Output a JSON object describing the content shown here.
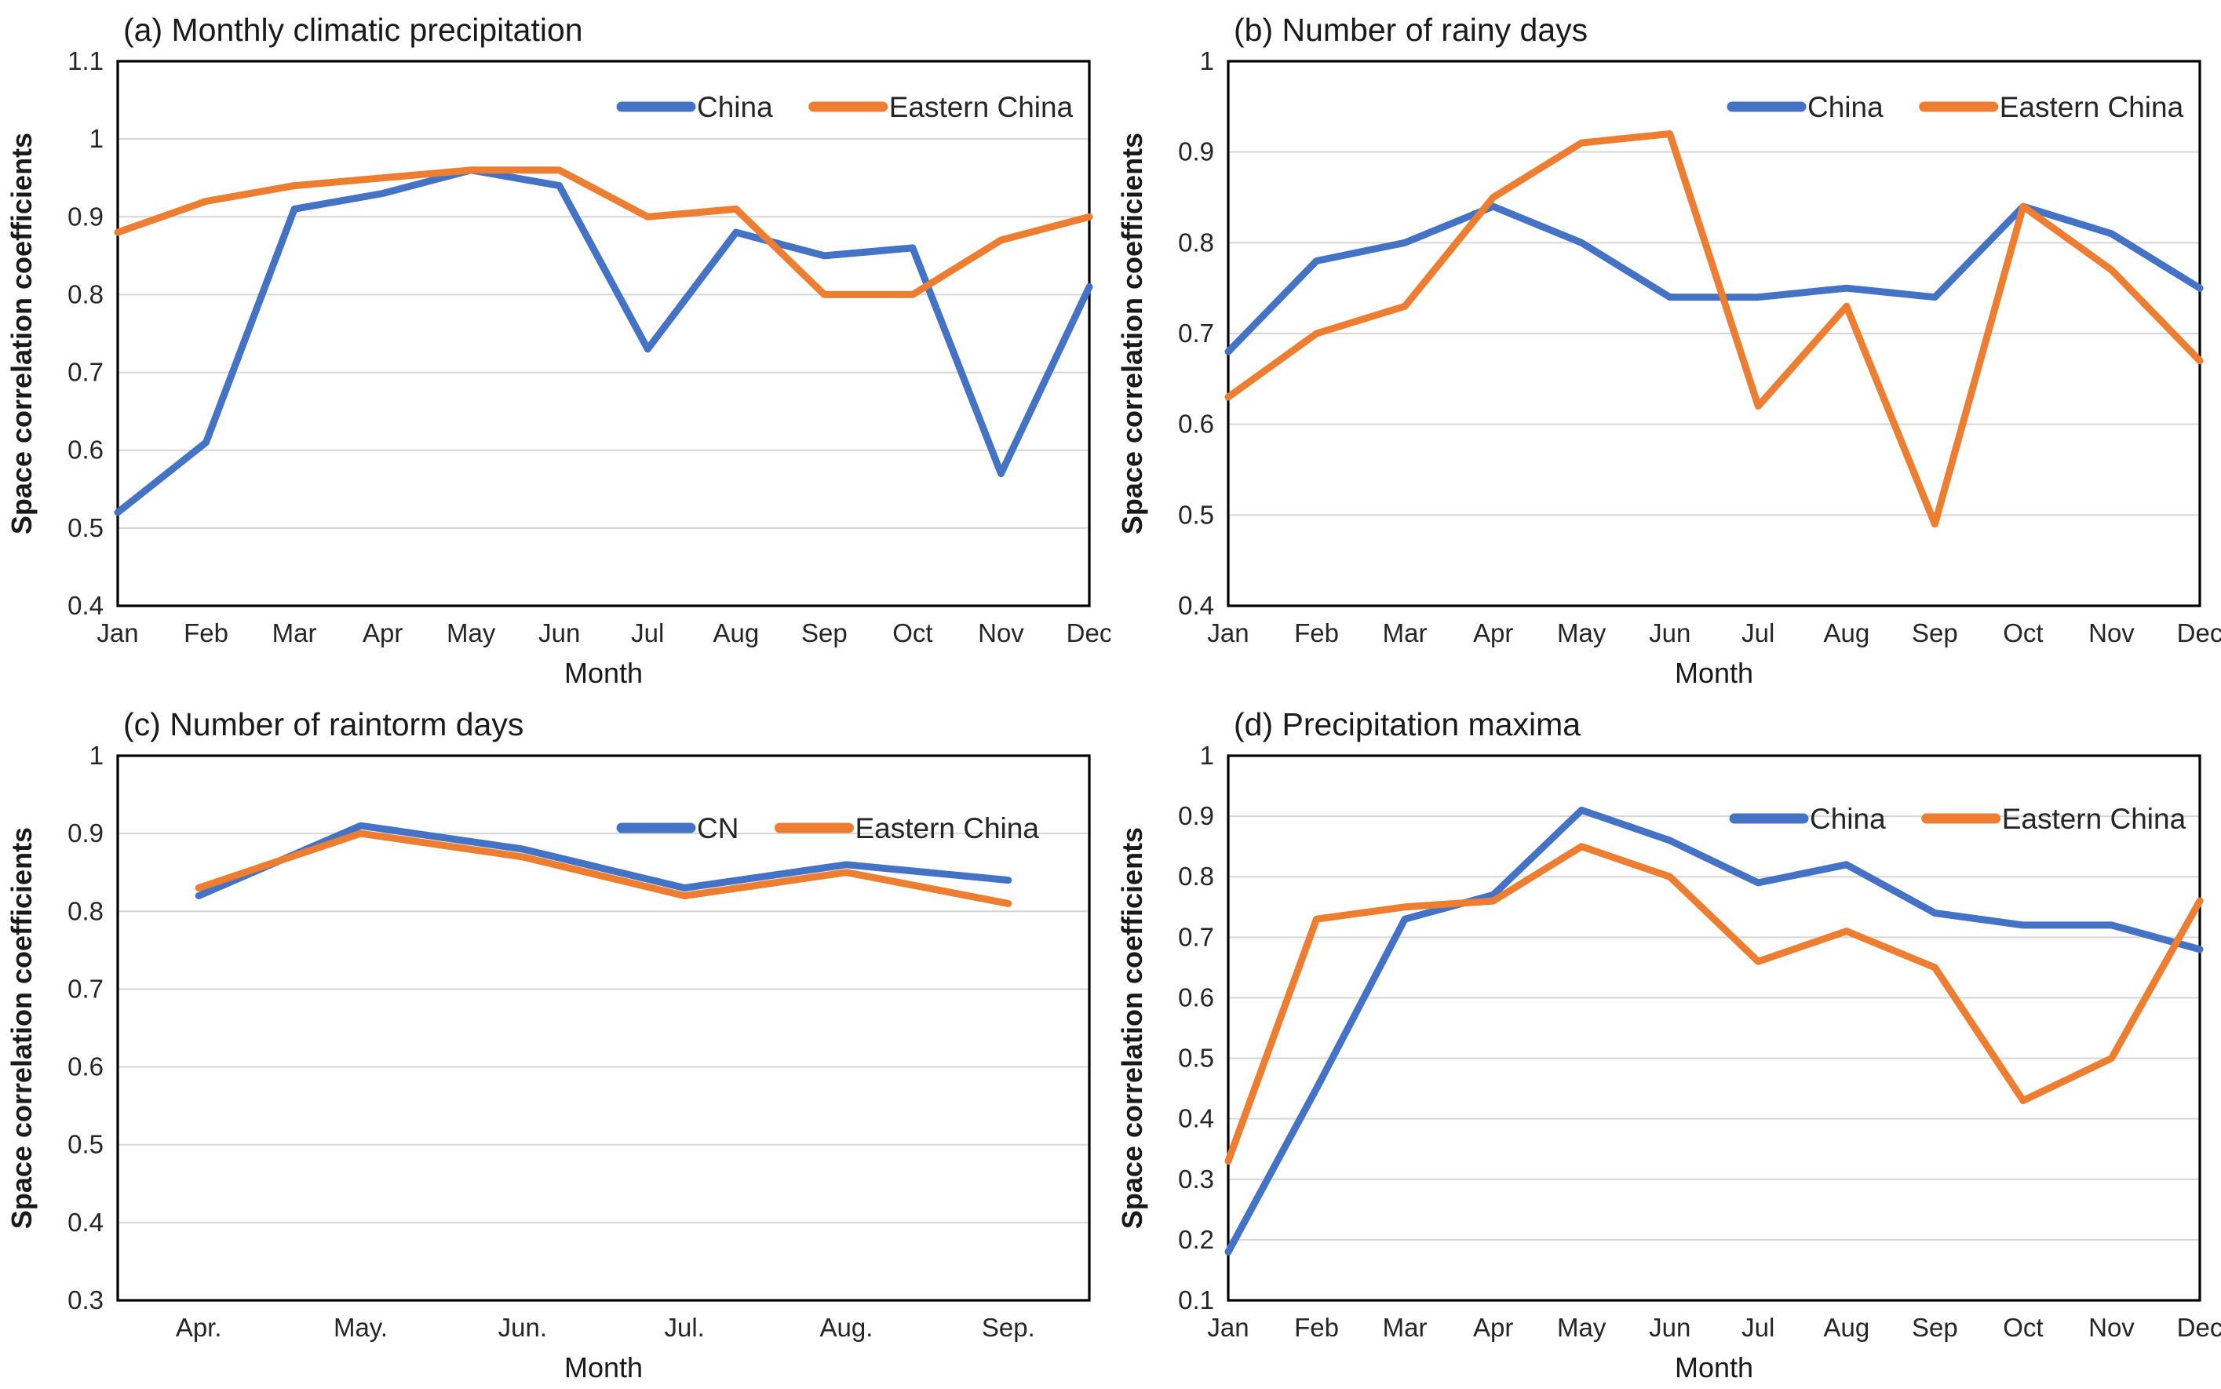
{
  "page": {
    "background": "#ffffff"
  },
  "colors": {
    "series_blue": "#4472C4",
    "series_orange": "#ED7D31",
    "gridline": "#D6D6D6",
    "plot_border": "#000000",
    "tick_text": "#262626",
    "title_text": "#1a1a1a"
  },
  "chart_data": [
    {
      "id": "a",
      "type": "line",
      "title": "(a) Monthly climatic precipitation",
      "xlabel": "Month",
      "ylabel": "Space correlation coefficients",
      "categories": [
        "Jan",
        "Feb",
        "Mar",
        "Apr",
        "May",
        "Jun",
        "Jul",
        "Aug",
        "Sep",
        "Oct",
        "Nov",
        "Dec"
      ],
      "x_placement": "on_ticks",
      "ylim": [
        0.4,
        1.1
      ],
      "yticks": [
        0.4,
        0.5,
        0.6,
        0.7,
        0.8,
        0.9,
        1.0,
        1.1
      ],
      "ytick_labels": [
        "0.4",
        "0.5",
        "0.6",
        "0.7",
        "0.8",
        "0.9",
        "1",
        "1.1"
      ],
      "grid": true,
      "legend_position": "inside-top-right",
      "series": [
        {
          "name": "China",
          "color": "#4472C4",
          "values": [
            0.52,
            0.61,
            0.91,
            0.93,
            0.96,
            0.94,
            0.73,
            0.88,
            0.85,
            0.86,
            0.57,
            0.81
          ]
        },
        {
          "name": "Eastern China",
          "color": "#ED7D31",
          "values": [
            0.88,
            0.92,
            0.94,
            0.95,
            0.96,
            0.96,
            0.9,
            0.91,
            0.8,
            0.8,
            0.87,
            0.9
          ]
        }
      ]
    },
    {
      "id": "b",
      "type": "line",
      "title": "(b) Number of rainy days",
      "xlabel": "Month",
      "ylabel": "Space correlation coefficients",
      "categories": [
        "Jan",
        "Feb",
        "Mar",
        "Apr",
        "May",
        "Jun",
        "Jul",
        "Aug",
        "Sep",
        "Oct",
        "Nov",
        "Dec"
      ],
      "x_placement": "on_ticks",
      "ylim": [
        0.4,
        1.0
      ],
      "yticks": [
        0.4,
        0.5,
        0.6,
        0.7,
        0.8,
        0.9,
        1.0
      ],
      "ytick_labels": [
        "0.4",
        "0.5",
        "0.6",
        "0.7",
        "0.8",
        "0.9",
        "1"
      ],
      "grid": true,
      "legend_position": "inside-top-right",
      "series": [
        {
          "name": "China",
          "color": "#4472C4",
          "values": [
            0.68,
            0.78,
            0.8,
            0.84,
            0.8,
            0.74,
            0.74,
            0.75,
            0.74,
            0.84,
            0.81,
            0.75
          ]
        },
        {
          "name": "Eastern China",
          "color": "#ED7D31",
          "values": [
            0.63,
            0.7,
            0.73,
            0.85,
            0.91,
            0.92,
            0.62,
            0.73,
            0.49,
            0.84,
            0.77,
            0.67
          ]
        }
      ]
    },
    {
      "id": "c",
      "type": "line",
      "title": "(c) Number of raintorm days",
      "xlabel": "Month",
      "ylabel": "Space correlation coefficients",
      "categories": [
        "Apr.",
        "May.",
        "Jun.",
        "Jul.",
        "Aug.",
        "Sep."
      ],
      "x_placement": "between_ticks",
      "ylim": [
        0.3,
        1.0
      ],
      "yticks": [
        0.3,
        0.4,
        0.5,
        0.6,
        0.7,
        0.8,
        0.9,
        1.0
      ],
      "ytick_labels": [
        "0.3",
        "0.4",
        "0.5",
        "0.6",
        "0.7",
        "0.8",
        "0.9",
        "1"
      ],
      "grid": true,
      "legend_position": "inside-top-right",
      "series": [
        {
          "name": "CN",
          "color": "#4472C4",
          "values": [
            0.82,
            0.91,
            0.88,
            0.83,
            0.86,
            0.84
          ]
        },
        {
          "name": "Eastern China",
          "color": "#ED7D31",
          "values": [
            0.83,
            0.9,
            0.87,
            0.82,
            0.85,
            0.81
          ]
        }
      ]
    },
    {
      "id": "d",
      "type": "line",
      "title": "(d) Precipitation maxima",
      "xlabel": "Month",
      "ylabel": "Space correlation coefficients",
      "categories": [
        "Jan",
        "Feb",
        "Mar",
        "Apr",
        "May",
        "Jun",
        "Jul",
        "Aug",
        "Sep",
        "Oct",
        "Nov",
        "Dec"
      ],
      "x_placement": "on_ticks",
      "ylim": [
        0.1,
        1.0
      ],
      "yticks": [
        0.1,
        0.2,
        0.3,
        0.4,
        0.5,
        0.6,
        0.7,
        0.8,
        0.9,
        1.0
      ],
      "ytick_labels": [
        "0.1",
        "0.2",
        "0.3",
        "0.4",
        "0.5",
        "0.6",
        "0.7",
        "0.8",
        "0.9",
        "1"
      ],
      "grid": true,
      "legend_position": "inside-top-right",
      "series": [
        {
          "name": "China",
          "color": "#4472C4",
          "values": [
            0.18,
            0.45,
            0.73,
            0.77,
            0.91,
            0.86,
            0.79,
            0.82,
            0.74,
            0.72,
            0.72,
            0.68
          ]
        },
        {
          "name": "Eastern China",
          "color": "#ED7D31",
          "values": [
            0.33,
            0.73,
            0.75,
            0.76,
            0.85,
            0.8,
            0.66,
            0.71,
            0.65,
            0.43,
            0.5,
            0.76
          ]
        }
      ]
    }
  ]
}
